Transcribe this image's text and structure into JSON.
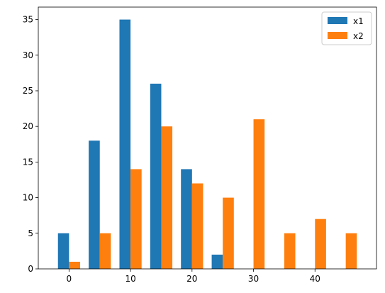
{
  "chart_data": {
    "type": "bar",
    "bins": [
      {
        "x": 0,
        "x1": 5,
        "x2": 1
      },
      {
        "x": 5,
        "x1": 18,
        "x2": 5
      },
      {
        "x": 10,
        "x1": 35,
        "x2": 14
      },
      {
        "x": 15,
        "x1": 26,
        "x2": 20
      },
      {
        "x": 20,
        "x1": 14,
        "x2": 12
      },
      {
        "x": 25,
        "x1": 2,
        "x2": 10
      },
      {
        "x": 30,
        "x1": 0,
        "x2": 21
      },
      {
        "x": 35,
        "x1": 0,
        "x2": 5
      },
      {
        "x": 40,
        "x1": 0,
        "x2": 7
      },
      {
        "x": 45,
        "x1": 0,
        "x2": 5
      }
    ],
    "series": [
      {
        "name": "x1",
        "color": "#1f77b4",
        "values": [
          5,
          18,
          35,
          26,
          14,
          2,
          0,
          0,
          0,
          0
        ]
      },
      {
        "name": "x2",
        "color": "#ff7f0e",
        "values": [
          1,
          5,
          14,
          20,
          12,
          10,
          21,
          5,
          7,
          5
        ]
      }
    ],
    "xticks": [
      {
        "value": 0,
        "label": "0"
      },
      {
        "value": 10,
        "label": "10"
      },
      {
        "value": 20,
        "label": "20"
      },
      {
        "value": 30,
        "label": "30"
      },
      {
        "value": 40,
        "label": "40"
      }
    ],
    "yticks": [
      {
        "value": 0,
        "label": "0"
      },
      {
        "value": 5,
        "label": "5"
      },
      {
        "value": 10,
        "label": "10"
      },
      {
        "value": 15,
        "label": "15"
      },
      {
        "value": 20,
        "label": "20"
      },
      {
        "value": 25,
        "label": "25"
      },
      {
        "value": 30,
        "label": "30"
      },
      {
        "value": 35,
        "label": "35"
      }
    ],
    "xlim": [
      -5,
      50
    ],
    "ylim": [
      0,
      36.75
    ],
    "title": "",
    "xlabel": "",
    "ylabel": "",
    "grid": false,
    "legend_position": "top-right"
  }
}
